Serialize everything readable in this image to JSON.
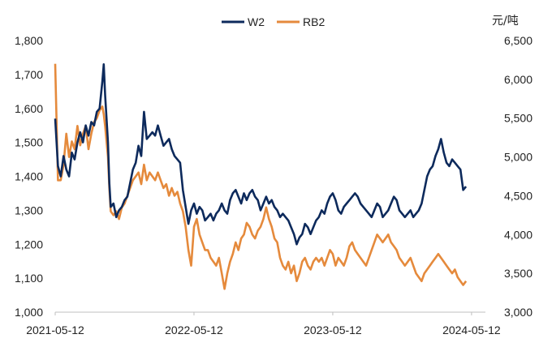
{
  "chart_data": {
    "type": "line",
    "y_unit_right": "元/吨",
    "left_axis": {
      "ylim": [
        1000,
        1800
      ],
      "ticks": [
        "1,000",
        "1,100",
        "1,200",
        "1,300",
        "1,400",
        "1,500",
        "1,600",
        "1,700",
        "1,800"
      ]
    },
    "right_axis": {
      "ylim": [
        3000,
        6500
      ],
      "ticks": [
        "3,000",
        "3,500",
        "4,000",
        "4,500",
        "5,000",
        "5,500",
        "6,000",
        "6,500"
      ]
    },
    "x_ticks": [
      "2021-05-12",
      "2022-05-12",
      "2023-05-12",
      "2024-05-12"
    ],
    "x_tick_positions": [
      0,
      1,
      2,
      3
    ],
    "x_range": [
      0,
      3.1
    ],
    "legend_position": "top-center",
    "series": [
      {
        "name": "W2",
        "axis": "left",
        "color": "#0d2a5c",
        "points": [
          [
            0.0,
            1570
          ],
          [
            0.02,
            1430
          ],
          [
            0.04,
            1400
          ],
          [
            0.06,
            1460
          ],
          [
            0.08,
            1420
          ],
          [
            0.1,
            1400
          ],
          [
            0.12,
            1470
          ],
          [
            0.14,
            1450
          ],
          [
            0.16,
            1500
          ],
          [
            0.18,
            1530
          ],
          [
            0.2,
            1500
          ],
          [
            0.22,
            1550
          ],
          [
            0.24,
            1520
          ],
          [
            0.26,
            1560
          ],
          [
            0.28,
            1550
          ],
          [
            0.3,
            1590
          ],
          [
            0.32,
            1600
          ],
          [
            0.34,
            1680
          ],
          [
            0.35,
            1730
          ],
          [
            0.36,
            1640
          ],
          [
            0.38,
            1500
          ],
          [
            0.39,
            1380
          ],
          [
            0.4,
            1310
          ],
          [
            0.42,
            1320
          ],
          [
            0.44,
            1280
          ],
          [
            0.46,
            1300
          ],
          [
            0.48,
            1310
          ],
          [
            0.5,
            1330
          ],
          [
            0.52,
            1340
          ],
          [
            0.54,
            1380
          ],
          [
            0.56,
            1420
          ],
          [
            0.58,
            1440
          ],
          [
            0.6,
            1490
          ],
          [
            0.62,
            1460
          ],
          [
            0.64,
            1590
          ],
          [
            0.66,
            1510
          ],
          [
            0.68,
            1520
          ],
          [
            0.7,
            1530
          ],
          [
            0.72,
            1520
          ],
          [
            0.74,
            1550
          ],
          [
            0.76,
            1520
          ],
          [
            0.78,
            1490
          ],
          [
            0.8,
            1500
          ],
          [
            0.82,
            1510
          ],
          [
            0.84,
            1480
          ],
          [
            0.86,
            1460
          ],
          [
            0.88,
            1450
          ],
          [
            0.9,
            1440
          ],
          [
            0.92,
            1360
          ],
          [
            0.94,
            1310
          ],
          [
            0.96,
            1260
          ],
          [
            0.98,
            1300
          ],
          [
            1.0,
            1320
          ],
          [
            1.02,
            1290
          ],
          [
            1.04,
            1310
          ],
          [
            1.06,
            1300
          ],
          [
            1.08,
            1270
          ],
          [
            1.1,
            1280
          ],
          [
            1.12,
            1290
          ],
          [
            1.14,
            1270
          ],
          [
            1.16,
            1290
          ],
          [
            1.18,
            1300
          ],
          [
            1.2,
            1320
          ],
          [
            1.22,
            1300
          ],
          [
            1.24,
            1290
          ],
          [
            1.26,
            1330
          ],
          [
            1.28,
            1350
          ],
          [
            1.3,
            1360
          ],
          [
            1.32,
            1340
          ],
          [
            1.34,
            1320
          ],
          [
            1.36,
            1350
          ],
          [
            1.38,
            1330
          ],
          [
            1.4,
            1350
          ],
          [
            1.42,
            1360
          ],
          [
            1.44,
            1340
          ],
          [
            1.46,
            1330
          ],
          [
            1.48,
            1300
          ],
          [
            1.5,
            1320
          ],
          [
            1.52,
            1340
          ],
          [
            1.54,
            1320
          ],
          [
            1.56,
            1330
          ],
          [
            1.58,
            1310
          ],
          [
            1.6,
            1300
          ],
          [
            1.62,
            1280
          ],
          [
            1.64,
            1290
          ],
          [
            1.66,
            1280
          ],
          [
            1.68,
            1270
          ],
          [
            1.7,
            1250
          ],
          [
            1.72,
            1230
          ],
          [
            1.74,
            1200
          ],
          [
            1.76,
            1220
          ],
          [
            1.78,
            1230
          ],
          [
            1.8,
            1260
          ],
          [
            1.82,
            1250
          ],
          [
            1.84,
            1230
          ],
          [
            1.86,
            1250
          ],
          [
            1.88,
            1270
          ],
          [
            1.9,
            1280
          ],
          [
            1.92,
            1300
          ],
          [
            1.94,
            1290
          ],
          [
            1.96,
            1320
          ],
          [
            1.98,
            1340
          ],
          [
            2.0,
            1350
          ],
          [
            2.02,
            1330
          ],
          [
            2.04,
            1300
          ],
          [
            2.06,
            1290
          ],
          [
            2.08,
            1310
          ],
          [
            2.1,
            1320
          ],
          [
            2.12,
            1330
          ],
          [
            2.14,
            1340
          ],
          [
            2.16,
            1350
          ],
          [
            2.18,
            1340
          ],
          [
            2.2,
            1320
          ],
          [
            2.22,
            1310
          ],
          [
            2.24,
            1300
          ],
          [
            2.26,
            1290
          ],
          [
            2.28,
            1280
          ],
          [
            2.3,
            1300
          ],
          [
            2.32,
            1320
          ],
          [
            2.34,
            1310
          ],
          [
            2.36,
            1280
          ],
          [
            2.38,
            1290
          ],
          [
            2.4,
            1300
          ],
          [
            2.42,
            1320
          ],
          [
            2.44,
            1340
          ],
          [
            2.46,
            1330
          ],
          [
            2.48,
            1300
          ],
          [
            2.5,
            1290
          ],
          [
            2.52,
            1280
          ],
          [
            2.54,
            1290
          ],
          [
            2.56,
            1300
          ],
          [
            2.58,
            1280
          ],
          [
            2.6,
            1290
          ],
          [
            2.62,
            1300
          ],
          [
            2.64,
            1320
          ],
          [
            2.66,
            1360
          ],
          [
            2.68,
            1400
          ],
          [
            2.7,
            1420
          ],
          [
            2.72,
            1430
          ],
          [
            2.74,
            1460
          ],
          [
            2.76,
            1480
          ],
          [
            2.78,
            1510
          ],
          [
            2.8,
            1470
          ],
          [
            2.82,
            1440
          ],
          [
            2.84,
            1430
          ],
          [
            2.86,
            1450
          ],
          [
            2.88,
            1440
          ],
          [
            2.9,
            1430
          ],
          [
            2.92,
            1420
          ],
          [
            2.94,
            1360
          ],
          [
            2.96,
            1370
          ]
        ]
      },
      {
        "name": "RB2",
        "axis": "right",
        "color": "#e58a3c",
        "points": [
          [
            0.0,
            6200
          ],
          [
            0.02,
            4700
          ],
          [
            0.04,
            4700
          ],
          [
            0.06,
            4900
          ],
          [
            0.08,
            5300
          ],
          [
            0.1,
            5000
          ],
          [
            0.12,
            5200
          ],
          [
            0.14,
            5100
          ],
          [
            0.16,
            5400
          ],
          [
            0.18,
            5150
          ],
          [
            0.2,
            5300
          ],
          [
            0.22,
            5400
          ],
          [
            0.24,
            5100
          ],
          [
            0.26,
            5300
          ],
          [
            0.28,
            5450
          ],
          [
            0.3,
            5500
          ],
          [
            0.32,
            5600
          ],
          [
            0.34,
            5650
          ],
          [
            0.35,
            5550
          ],
          [
            0.36,
            5400
          ],
          [
            0.38,
            5000
          ],
          [
            0.39,
            4600
          ],
          [
            0.4,
            4300
          ],
          [
            0.42,
            4250
          ],
          [
            0.44,
            4300
          ],
          [
            0.46,
            4200
          ],
          [
            0.48,
            4350
          ],
          [
            0.5,
            4400
          ],
          [
            0.52,
            4500
          ],
          [
            0.54,
            4600
          ],
          [
            0.56,
            4700
          ],
          [
            0.58,
            4750
          ],
          [
            0.6,
            4800
          ],
          [
            0.62,
            4650
          ],
          [
            0.64,
            4900
          ],
          [
            0.66,
            4700
          ],
          [
            0.68,
            4800
          ],
          [
            0.7,
            4750
          ],
          [
            0.72,
            4700
          ],
          [
            0.74,
            4800
          ],
          [
            0.76,
            4700
          ],
          [
            0.78,
            4600
          ],
          [
            0.8,
            4650
          ],
          [
            0.82,
            4500
          ],
          [
            0.84,
            4600
          ],
          [
            0.86,
            4500
          ],
          [
            0.88,
            4550
          ],
          [
            0.9,
            4400
          ],
          [
            0.92,
            4300
          ],
          [
            0.94,
            4100
          ],
          [
            0.96,
            3800
          ],
          [
            0.98,
            3600
          ],
          [
            1.0,
            4100
          ],
          [
            1.02,
            4200
          ],
          [
            1.04,
            4000
          ],
          [
            1.06,
            3900
          ],
          [
            1.08,
            3800
          ],
          [
            1.1,
            3800
          ],
          [
            1.12,
            3700
          ],
          [
            1.14,
            3650
          ],
          [
            1.16,
            3600
          ],
          [
            1.18,
            3700
          ],
          [
            1.2,
            3500
          ],
          [
            1.22,
            3300
          ],
          [
            1.24,
            3500
          ],
          [
            1.26,
            3650
          ],
          [
            1.28,
            3750
          ],
          [
            1.3,
            3900
          ],
          [
            1.32,
            3800
          ],
          [
            1.34,
            3950
          ],
          [
            1.36,
            4000
          ],
          [
            1.38,
            4150
          ],
          [
            1.4,
            4100
          ],
          [
            1.42,
            4000
          ],
          [
            1.44,
            3950
          ],
          [
            1.46,
            4050
          ],
          [
            1.48,
            4100
          ],
          [
            1.5,
            4200
          ],
          [
            1.52,
            4350
          ],
          [
            1.54,
            4200
          ],
          [
            1.56,
            4100
          ],
          [
            1.58,
            3950
          ],
          [
            1.6,
            3900
          ],
          [
            1.62,
            3700
          ],
          [
            1.64,
            3600
          ],
          [
            1.66,
            3550
          ],
          [
            1.68,
            3650
          ],
          [
            1.7,
            3500
          ],
          [
            1.72,
            3600
          ],
          [
            1.74,
            3400
          ],
          [
            1.76,
            3500
          ],
          [
            1.78,
            3650
          ],
          [
            1.8,
            3700
          ],
          [
            1.82,
            3600
          ],
          [
            1.84,
            3550
          ],
          [
            1.86,
            3650
          ],
          [
            1.88,
            3700
          ],
          [
            1.9,
            3650
          ],
          [
            1.92,
            3700
          ],
          [
            1.94,
            3600
          ],
          [
            1.96,
            3700
          ],
          [
            1.98,
            3800
          ],
          [
            2.0,
            3750
          ],
          [
            2.02,
            3600
          ],
          [
            2.04,
            3700
          ],
          [
            2.06,
            3650
          ],
          [
            2.08,
            3600
          ],
          [
            2.1,
            3700
          ],
          [
            2.12,
            3850
          ],
          [
            2.14,
            3900
          ],
          [
            2.16,
            3800
          ],
          [
            2.18,
            3750
          ],
          [
            2.2,
            3700
          ],
          [
            2.22,
            3650
          ],
          [
            2.24,
            3600
          ],
          [
            2.26,
            3700
          ],
          [
            2.28,
            3800
          ],
          [
            2.3,
            3900
          ],
          [
            2.32,
            4000
          ],
          [
            2.34,
            3950
          ],
          [
            2.36,
            3900
          ],
          [
            2.38,
            3950
          ],
          [
            2.4,
            4000
          ],
          [
            2.42,
            3900
          ],
          [
            2.44,
            3850
          ],
          [
            2.46,
            3800
          ],
          [
            2.48,
            3700
          ],
          [
            2.5,
            3650
          ],
          [
            2.52,
            3600
          ],
          [
            2.54,
            3650
          ],
          [
            2.56,
            3700
          ],
          [
            2.58,
            3600
          ],
          [
            2.6,
            3500
          ],
          [
            2.62,
            3450
          ],
          [
            2.64,
            3400
          ],
          [
            2.66,
            3500
          ],
          [
            2.68,
            3550
          ],
          [
            2.7,
            3600
          ],
          [
            2.72,
            3650
          ],
          [
            2.74,
            3700
          ],
          [
            2.76,
            3750
          ],
          [
            2.78,
            3700
          ],
          [
            2.8,
            3650
          ],
          [
            2.82,
            3600
          ],
          [
            2.84,
            3550
          ],
          [
            2.86,
            3500
          ],
          [
            2.88,
            3550
          ],
          [
            2.9,
            3450
          ],
          [
            2.92,
            3400
          ],
          [
            2.94,
            3350
          ],
          [
            2.96,
            3400
          ]
        ]
      }
    ]
  }
}
